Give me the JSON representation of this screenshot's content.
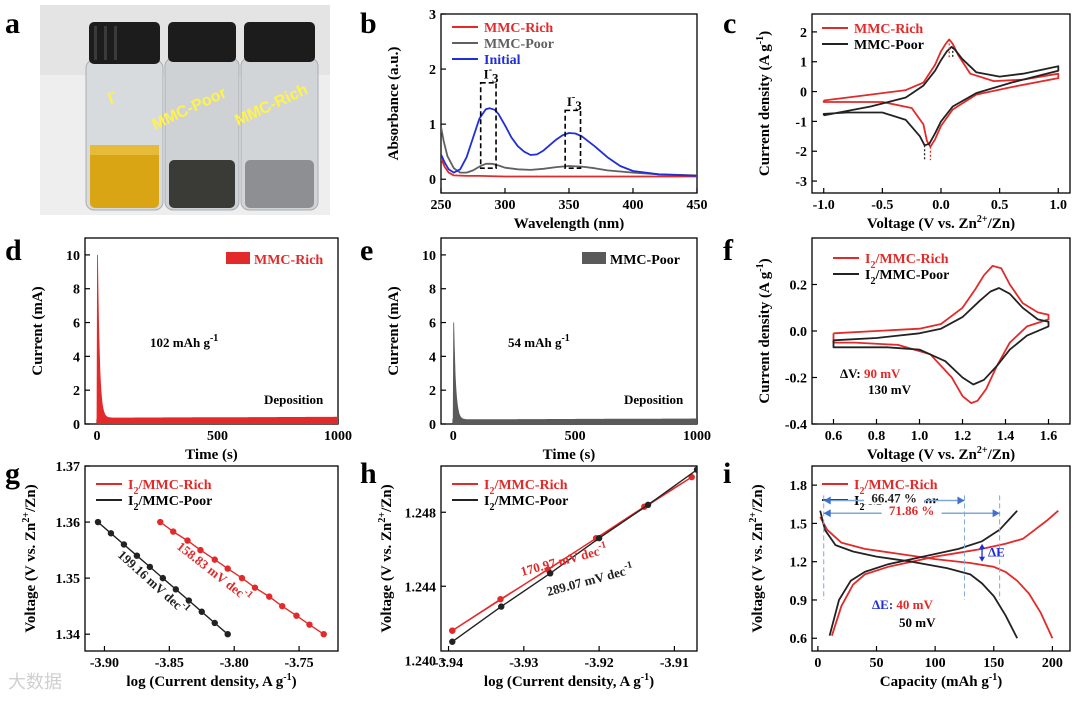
{
  "panel_letters": {
    "a": "a",
    "b": "b",
    "c": "c",
    "d": "d",
    "e": "e",
    "f": "f",
    "g": "g",
    "h": "h",
    "i": "i"
  },
  "photo": {
    "labels": [
      "I",
      "MMC-Poor",
      "MMC-Rich"
    ],
    "i3_superscript": "-",
    "colors": {
      "liquid_yellow": "#d9a514",
      "liquid_dark": "#3a3a36",
      "liquid_clear": "#8e8f93",
      "cap": "#1c1c1c",
      "glass": "#c9cccf",
      "label": "#fff34a"
    }
  },
  "watermark": "大数据",
  "colors": {
    "rich": "#e32a2a",
    "poor": "#222222",
    "poor_gray": "#606060",
    "initial": "#1f2fd8",
    "dash_blue": "#7fa8d8",
    "arrow_blue": "#3f6fd0",
    "annot_red": "#e32a2a",
    "annot_blue": "#1f2fd8"
  },
  "chart_data": [
    {
      "panel": "b",
      "type": "line",
      "xlabel": "Wavelength (nm)",
      "ylabel": "Absorbance (a.u.)",
      "xlim": [
        250,
        450
      ],
      "ylim": [
        -0.25,
        3.0
      ],
      "xticks": [
        250,
        300,
        350,
        400,
        450
      ],
      "yticks": [
        0,
        1,
        2,
        3
      ],
      "series": [
        {
          "name": "MMC-Rich",
          "color": "#e32a2a",
          "x": [
            250,
            253,
            256,
            260,
            270,
            280,
            300,
            320,
            340,
            360,
            380,
            400,
            420,
            450
          ],
          "y": [
            0.38,
            0.22,
            0.12,
            0.07,
            0.06,
            0.06,
            0.05,
            0.05,
            0.05,
            0.05,
            0.05,
            0.05,
            0.05,
            0.05
          ]
        },
        {
          "name": "MMC-Poor",
          "color": "#606060",
          "x": [
            250,
            252,
            255,
            260,
            265,
            270,
            275,
            280,
            285,
            290,
            295,
            300,
            310,
            320,
            330,
            340,
            350,
            360,
            370,
            380,
            400,
            420,
            450
          ],
          "y": [
            0.95,
            0.7,
            0.42,
            0.2,
            0.12,
            0.12,
            0.16,
            0.23,
            0.28,
            0.28,
            0.25,
            0.21,
            0.18,
            0.17,
            0.19,
            0.22,
            0.24,
            0.23,
            0.2,
            0.16,
            0.12,
            0.09,
            0.07
          ]
        },
        {
          "name": "Initial",
          "color": "#1f2fd8",
          "x": [
            250,
            253,
            256,
            260,
            265,
            270,
            275,
            280,
            285,
            288,
            292,
            295,
            300,
            305,
            310,
            315,
            320,
            325,
            330,
            335,
            340,
            345,
            350,
            355,
            360,
            370,
            380,
            390,
            400,
            420,
            450
          ],
          "y": [
            0.45,
            0.3,
            0.18,
            0.12,
            0.18,
            0.4,
            0.75,
            1.1,
            1.27,
            1.29,
            1.26,
            1.18,
            0.98,
            0.76,
            0.6,
            0.5,
            0.44,
            0.45,
            0.52,
            0.62,
            0.72,
            0.8,
            0.84,
            0.83,
            0.78,
            0.6,
            0.4,
            0.24,
            0.15,
            0.09,
            0.06
          ]
        }
      ],
      "annotations": [
        {
          "text": "I",
          "sup": "-",
          "sub": "3",
          "x": 288,
          "y": 1.83
        },
        {
          "text": "I",
          "sup": "-",
          "sub": "3",
          "x": 353,
          "y": 1.33
        }
      ],
      "boxes": [
        {
          "x0": 281,
          "x1": 293,
          "y0": 0.2,
          "y1": 1.75
        },
        {
          "x0": 347,
          "x1": 359,
          "y0": 0.2,
          "y1": 1.25
        }
      ]
    },
    {
      "panel": "c",
      "type": "line",
      "xlabel": "Voltage (V vs. Zn2+/Zn)",
      "ylabel": "Current density (A g-1)",
      "xlim": [
        -1.1,
        1.1
      ],
      "ylim": [
        -3.4,
        2.6
      ],
      "xticks": [
        -1.0,
        -0.5,
        0.0,
        0.5,
        1.0
      ],
      "yticks": [
        -3,
        -2,
        -1,
        0,
        1,
        2
      ],
      "series": [
        {
          "name": "MMC-Rich",
          "color": "#e32a2a",
          "x": [
            -1.0,
            -0.6,
            -0.3,
            -0.15,
            -0.05,
            0.0,
            0.04,
            0.07,
            0.1,
            0.15,
            0.25,
            0.45,
            0.7,
            1.0,
            1.0,
            0.6,
            0.3,
            0.1,
            0.0,
            -0.05,
            -0.09,
            -0.12,
            -0.15,
            -0.25,
            -0.5,
            -0.8,
            -1.0,
            -1.0
          ],
          "y": [
            -0.3,
            -0.1,
            0.05,
            0.3,
            0.9,
            1.35,
            1.6,
            1.75,
            1.6,
            1.2,
            0.6,
            0.35,
            0.4,
            0.6,
            0.45,
            0.15,
            -0.1,
            -0.6,
            -1.15,
            -1.6,
            -1.85,
            -1.65,
            -1.1,
            -0.55,
            -0.35,
            -0.35,
            -0.35,
            -0.3
          ]
        },
        {
          "name": "MMC-Poor",
          "color": "#222222",
          "x": [
            -1.0,
            -0.6,
            -0.3,
            -0.15,
            -0.05,
            0.0,
            0.05,
            0.09,
            0.12,
            0.18,
            0.3,
            0.5,
            0.7,
            1.0,
            1.0,
            0.6,
            0.3,
            0.1,
            0.0,
            -0.05,
            -0.1,
            -0.14,
            -0.18,
            -0.3,
            -0.5,
            -0.8,
            -1.0,
            -1.0
          ],
          "y": [
            -0.8,
            -0.5,
            -0.2,
            0.2,
            0.7,
            1.05,
            1.35,
            1.5,
            1.4,
            1.1,
            0.65,
            0.5,
            0.6,
            0.85,
            0.7,
            0.3,
            -0.05,
            -0.5,
            -1.0,
            -1.4,
            -1.75,
            -1.8,
            -1.5,
            -0.95,
            -0.7,
            -0.7,
            -0.75,
            -0.8
          ]
        }
      ]
    },
    {
      "panel": "d",
      "type": "bar",
      "xlabel": "Time (s)",
      "ylabel": "Current (mA)",
      "xlim": [
        -50,
        1000
      ],
      "ylim": [
        0,
        11
      ],
      "xticks": [
        0,
        500,
        1000
      ],
      "yticks": [
        0,
        2,
        4,
        6,
        8,
        10
      ],
      "series": [
        {
          "name": "MMC-Rich",
          "color": "#e32a2a"
        }
      ],
      "decay": {
        "peak": 10,
        "t0": 2,
        "tau": 8,
        "tail": 0.35,
        "end": 0.4
      },
      "annotations": [
        {
          "text": "102 mAh g",
          "sup": "-1"
        },
        {
          "text": "Deposition"
        }
      ]
    },
    {
      "panel": "e",
      "type": "bar",
      "xlabel": "Time (s)",
      "ylabel": "Current (mA)",
      "xlim": [
        -50,
        1000
      ],
      "ylim": [
        0,
        11
      ],
      "xticks": [
        0,
        500,
        1000
      ],
      "yticks": [
        0,
        2,
        4,
        6,
        8,
        10
      ],
      "series": [
        {
          "name": "MMC-Poor",
          "color": "#5a5a5a"
        }
      ],
      "decay": {
        "peak": 6,
        "t0": 2,
        "tau": 8,
        "tail": 0.25,
        "end": 0.3
      },
      "annotations": [
        {
          "text": "54 mAh g",
          "sup": "-1"
        },
        {
          "text": "Deposition"
        }
      ]
    },
    {
      "panel": "f",
      "type": "line",
      "xlabel": "Voltage (V vs. Zn2+/Zn)",
      "ylabel": "Current density (A g-1)",
      "xlim": [
        0.5,
        1.7
      ],
      "ylim": [
        -0.4,
        0.4
      ],
      "xticks": [
        0.6,
        0.8,
        1.0,
        1.2,
        1.4,
        1.6
      ],
      "yticks": [
        -0.4,
        -0.2,
        0.0,
        0.2
      ],
      "series": [
        {
          "name": "I2/MMC-Rich",
          "color": "#e32a2a",
          "x": [
            0.6,
            0.8,
            1.0,
            1.1,
            1.2,
            1.26,
            1.3,
            1.34,
            1.38,
            1.42,
            1.48,
            1.55,
            1.6,
            1.6,
            1.5,
            1.42,
            1.36,
            1.31,
            1.27,
            1.24,
            1.2,
            1.15,
            1.05,
            0.9,
            0.7,
            0.6,
            0.6
          ],
          "y": [
            -0.01,
            0.0,
            0.01,
            0.03,
            0.1,
            0.18,
            0.24,
            0.28,
            0.27,
            0.2,
            0.12,
            0.08,
            0.07,
            0.05,
            0.02,
            -0.05,
            -0.15,
            -0.25,
            -0.3,
            -0.31,
            -0.28,
            -0.2,
            -0.1,
            -0.06,
            -0.05,
            -0.05,
            -0.01
          ]
        },
        {
          "name": "I2/MMC-Poor",
          "color": "#222222",
          "x": [
            0.6,
            0.8,
            1.0,
            1.1,
            1.2,
            1.28,
            1.33,
            1.37,
            1.42,
            1.48,
            1.55,
            1.6,
            1.6,
            1.5,
            1.42,
            1.36,
            1.3,
            1.25,
            1.2,
            1.12,
            1.0,
            0.85,
            0.7,
            0.6,
            0.6
          ],
          "y": [
            -0.04,
            -0.03,
            -0.01,
            0.01,
            0.06,
            0.13,
            0.17,
            0.185,
            0.16,
            0.1,
            0.05,
            0.04,
            0.02,
            -0.02,
            -0.08,
            -0.15,
            -0.21,
            -0.23,
            -0.2,
            -0.13,
            -0.08,
            -0.07,
            -0.07,
            -0.07,
            -0.04
          ]
        }
      ],
      "annotations": [
        {
          "text": "ΔV: ",
          "value": "90 mV",
          "value_color": "#e32a2a"
        },
        {
          "text": "130 mV"
        }
      ]
    },
    {
      "panel": "g",
      "type": "scatter",
      "xlabel": "log (Current density, A g-1)",
      "ylabel": "Voltage (V vs. Zn2+/Zn)",
      "xlim": [
        -3.915,
        -3.72
      ],
      "ylim": [
        1.337,
        1.37
      ],
      "xticks": [
        -3.9,
        -3.85,
        -3.8,
        -3.75
      ],
      "yticks": [
        1.34,
        1.35,
        1.36,
        1.37
      ],
      "series": [
        {
          "name": "I2/MMC-Rich",
          "color": "#e32a2a",
          "x": [
            -3.857,
            -3.847,
            -3.836,
            -3.826,
            -3.815,
            -3.805,
            -3.794,
            -3.784,
            -3.773,
            -3.763,
            -3.752,
            -3.742,
            -3.731
          ],
          "y": [
            1.36,
            1.3583,
            1.3567,
            1.355,
            1.3533,
            1.3517,
            1.35,
            1.3483,
            1.3467,
            1.345,
            1.3433,
            1.3417,
            1.34
          ]
        },
        {
          "name": "I2/MMC-Poor",
          "color": "#222222",
          "x": [
            -3.905,
            -3.895,
            -3.885,
            -3.875,
            -3.865,
            -3.855,
            -3.845,
            -3.835,
            -3.825,
            -3.815,
            -3.805
          ],
          "y": [
            1.36,
            1.358,
            1.356,
            1.354,
            1.352,
            1.35,
            1.348,
            1.346,
            1.344,
            1.342,
            1.34
          ]
        }
      ],
      "annotations": [
        {
          "text": "158.83 mV dec",
          "sup": "-1",
          "color": "#e32a2a"
        },
        {
          "text": "199.16 mV dec",
          "sup": "-1",
          "color": "#222222"
        }
      ]
    },
    {
      "panel": "h",
      "type": "scatter",
      "xlabel": "log (Current density, A g-1)",
      "ylabel": "Voltage (V vs. Zn2+/Zn)",
      "xlim": [
        -3.941,
        -3.907
      ],
      "ylim": [
        1.2405,
        1.2505
      ],
      "xticks": [
        -3.94,
        -3.93,
        -3.92,
        -3.91
      ],
      "yticks": [
        1.24,
        1.244,
        1.248
      ],
      "series": [
        {
          "name": "I2/MMC-Rich",
          "color": "#e32a2a",
          "x": [
            -3.9395,
            -3.9331,
            -3.9268,
            -3.9204,
            -3.914,
            -3.9077,
            -3.9395
          ],
          "y": [
            1.2416,
            1.2433,
            1.2449,
            1.2466,
            1.2483,
            1.2499,
            1.2416
          ]
        },
        {
          "name": "I2/MMC-Poor",
          "color": "#222222",
          "x": [
            -3.9395,
            -3.933,
            -3.9265,
            -3.92,
            -3.9135,
            -3.907
          ],
          "y": [
            1.241,
            1.2429,
            1.2447,
            1.2466,
            1.2484,
            1.2503
          ]
        }
      ],
      "annotations": [
        {
          "text": "170.97 mV dec",
          "sup": "-1",
          "color": "#e32a2a"
        },
        {
          "text": "289.07 mV dec",
          "sup": "-1",
          "color": "#222222"
        }
      ]
    },
    {
      "panel": "i",
      "type": "line",
      "xlabel": "Capacity (mAh g-1)",
      "ylabel": "Voltage (V vs. Zn2+/Zn)",
      "xlim": [
        -5,
        215
      ],
      "ylim": [
        0.5,
        1.95
      ],
      "xticks": [
        0,
        50,
        100,
        150,
        200
      ],
      "yticks": [
        0.6,
        0.9,
        1.2,
        1.5,
        1.8
      ],
      "series": [
        {
          "name": "I2/MMC-Rich",
          "color": "#e32a2a",
          "x": [
            12,
            20,
            30,
            40,
            60,
            80,
            100,
            120,
            140,
            160,
            175,
            185,
            195,
            205
          ],
          "y": [
            0.62,
            0.85,
            1.02,
            1.1,
            1.16,
            1.2,
            1.24,
            1.27,
            1.3,
            1.34,
            1.38,
            1.45,
            1.52,
            1.6
          ]
        },
        {
          "name": "I2/MMC-Rich discharge",
          "color": "#e32a2a",
          "x": [
            2,
            8,
            20,
            40,
            70,
            100,
            130,
            150,
            160,
            170,
            180,
            190,
            200
          ],
          "y": [
            1.55,
            1.45,
            1.35,
            1.3,
            1.26,
            1.22,
            1.19,
            1.16,
            1.12,
            1.05,
            0.95,
            0.8,
            0.6
          ]
        },
        {
          "name": "I2/MMC-Poor",
          "color": "#222222",
          "x": [
            10,
            18,
            28,
            40,
            60,
            80,
            100,
            120,
            140,
            155,
            165,
            170
          ],
          "y": [
            0.62,
            0.9,
            1.05,
            1.12,
            1.18,
            1.22,
            1.26,
            1.3,
            1.36,
            1.45,
            1.55,
            1.6
          ]
        },
        {
          "name": "I2/MMC-Poor discharge",
          "color": "#222222",
          "x": [
            2,
            6,
            15,
            30,
            50,
            80,
            110,
            130,
            140,
            150,
            160,
            170
          ],
          "y": [
            1.6,
            1.45,
            1.33,
            1.28,
            1.24,
            1.2,
            1.15,
            1.1,
            1.03,
            0.93,
            0.78,
            0.6
          ]
        }
      ],
      "annotations": [
        {
          "text": "66.47 %",
          "color": "#222222",
          "x0": 5,
          "x1": 125,
          "y": 1.68
        },
        {
          "text": "71.86 %",
          "color": "#e32a2a",
          "x0": 5,
          "x1": 155,
          "y": 1.58
        },
        {
          "text": "ΔE",
          "color": "#1f2fd8"
        },
        {
          "text": "ΔE: ",
          "value": "40 mV",
          "value_color": "#e32a2a",
          "color": "#1f2fd8"
        },
        {
          "text": "50 mV"
        }
      ]
    }
  ]
}
